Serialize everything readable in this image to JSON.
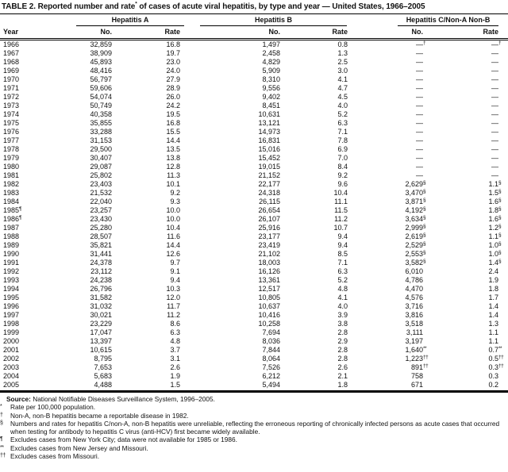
{
  "title": {
    "pre": "TABLE 2. Reported number and rate",
    "sup": "*",
    "post": " of cases of acute viral hepatitis, by type and year — United States, 1966–2005"
  },
  "table": {
    "groups": [
      "Hepatitis A",
      "Hepatitis B",
      "Hepatitis C/Non-A Non-B"
    ],
    "columns": [
      "Year",
      "No.",
      "Rate",
      "No.",
      "Rate",
      "No.",
      "Rate"
    ],
    "rows": [
      [
        "1966",
        "32,859",
        "16.8",
        "1,497",
        "0.8",
        "—^†",
        "—^†"
      ],
      [
        "1967",
        "38,909",
        "19.7",
        "2,458",
        "1.3",
        "—",
        "—"
      ],
      [
        "1968",
        "45,893",
        "23.0",
        "4,829",
        "2.5",
        "—",
        "—"
      ],
      [
        "1969",
        "48,416",
        "24.0",
        "5,909",
        "3.0",
        "—",
        "—"
      ],
      [
        "1970",
        "56,797",
        "27.9",
        "8,310",
        "4.1",
        "—",
        "—"
      ],
      [
        "1971",
        "59,606",
        "28.9",
        "9,556",
        "4.7",
        "—",
        "—"
      ],
      [
        "1972",
        "54,074",
        "26.0",
        "9,402",
        "4.5",
        "—",
        "—"
      ],
      [
        "1973",
        "50,749",
        "24.2",
        "8,451",
        "4.0",
        "—",
        "—"
      ],
      [
        "1974",
        "40,358",
        "19.5",
        "10,631",
        "5.2",
        "—",
        "—"
      ],
      [
        "1975",
        "35,855",
        "16.8",
        "13,121",
        "6.3",
        "—",
        "—"
      ],
      [
        "1976",
        "33,288",
        "15.5",
        "14,973",
        "7.1",
        "—",
        "—"
      ],
      [
        "1977",
        "31,153",
        "14.4",
        "16,831",
        "7.8",
        "—",
        "—"
      ],
      [
        "1978",
        "29,500",
        "13.5",
        "15,016",
        "6.9",
        "—",
        "—"
      ],
      [
        "1979",
        "30,407",
        "13.8",
        "15,452",
        "7.0",
        "—",
        "—"
      ],
      [
        "1980",
        "29,087",
        "12.8",
        "19,015",
        "8.4",
        "—",
        "—"
      ],
      [
        "1981",
        "25,802",
        "11.3",
        "21,152",
        "9.2",
        "—",
        "—"
      ],
      [
        "1982",
        "23,403",
        "10.1",
        "22,177",
        "9.6",
        "2,629^§",
        "1.1^§"
      ],
      [
        "1983",
        "21,532",
        "9.2",
        "24,318",
        "10.4",
        "3,470^§",
        "1.5^§"
      ],
      [
        "1984",
        "22,040",
        "9.3",
        "26,115",
        "11.1",
        "3,871^§",
        "1.6^§"
      ],
      [
        "1985^¶",
        "23,257",
        "10.0",
        "26,654",
        "11.5",
        "4,192^§",
        "1.8^§"
      ],
      [
        "1986^¶",
        "23,430",
        "10.0",
        "26,107",
        "11.2",
        "3,634^§",
        "1.6^§"
      ],
      [
        "1987",
        "25,280",
        "10.4",
        "25,916",
        "10.7",
        "2,999^§",
        "1.2^§"
      ],
      [
        "1988",
        "28,507",
        "11.6",
        "23,177",
        "9.4",
        "2,619^§",
        "1.1^§"
      ],
      [
        "1989",
        "35,821",
        "14.4",
        "23,419",
        "9.4",
        "2,529^§",
        "1.0^§"
      ],
      [
        "1990",
        "31,441",
        "12.6",
        "21,102",
        "8.5",
        "2,553^§",
        "1.0^§"
      ],
      [
        "1991",
        "24,378",
        "9.7",
        "18,003",
        "7.1",
        "3,582^§",
        "1.4^§"
      ],
      [
        "1992",
        "23,112",
        "9.1",
        "16,126",
        "6.3",
        "6,010",
        "2.4"
      ],
      [
        "1993",
        "24,238",
        "9.4",
        "13,361",
        "5.2",
        "4,786",
        "1.9"
      ],
      [
        "1994",
        "26,796",
        "10.3",
        "12,517",
        "4.8",
        "4,470",
        "1.8"
      ],
      [
        "1995",
        "31,582",
        "12.0",
        "10,805",
        "4.1",
        "4,576",
        "1.7"
      ],
      [
        "1996",
        "31,032",
        "11.7",
        "10,637",
        "4.0",
        "3,716",
        "1.4"
      ],
      [
        "1997",
        "30,021",
        "11.2",
        "10,416",
        "3.9",
        "3,816",
        "1.4"
      ],
      [
        "1998",
        "23,229",
        "8.6",
        "10,258",
        "3.8",
        "3,518",
        "1.3"
      ],
      [
        "1999",
        "17,047",
        "6.3",
        "7,694",
        "2.8",
        "3,111",
        "1.1"
      ],
      [
        "2000",
        "13,397",
        "4.8",
        "8,036",
        "2.9",
        "3,197",
        "1.1"
      ],
      [
        "2001",
        "10,615",
        "3.7",
        "7,844",
        "2.8",
        "1,640^**",
        "0.7^**"
      ],
      [
        "2002",
        "8,795",
        "3.1",
        "8,064",
        "2.8",
        "1,223^††",
        "0.5^††"
      ],
      [
        "2003",
        "7,653",
        "2.6",
        "7,526",
        "2.6",
        "891^††",
        "0.3^††"
      ],
      [
        "2004",
        "5,683",
        "1.9",
        "6,212",
        "2.1",
        "758",
        "0.3"
      ],
      [
        "2005",
        "4,488",
        "1.5",
        "5,494",
        "1.8",
        "671",
        "0.2"
      ]
    ]
  },
  "footnotes": {
    "source_label": "Source:",
    "source_text": "National Notifiable Diseases Surveillance System, 1996–2005.",
    "items": [
      {
        "marker": "*",
        "text": "Rate per 100,000 population."
      },
      {
        "marker": "†",
        "text": "Non-A, non-B hepatitis became a reportable disease in 1982."
      },
      {
        "marker": "§",
        "text": "Numbers and rates for hepatitis C/non-A, non-B hepatitis were unreliable, reflecting the erroneous reporting of chronically infected persons as acute cases that occurred when testing for antibody to hepatitis C virus (anti-HCV) first became widely available."
      },
      {
        "marker": "¶",
        "text": "Excludes cases from New York City; data were not available for 1985 or 1986."
      },
      {
        "marker": "**",
        "text": "Excludes cases from New Jersey and Missouri."
      },
      {
        "marker": "††",
        "text": "Excludes cases from Missouri."
      }
    ]
  }
}
